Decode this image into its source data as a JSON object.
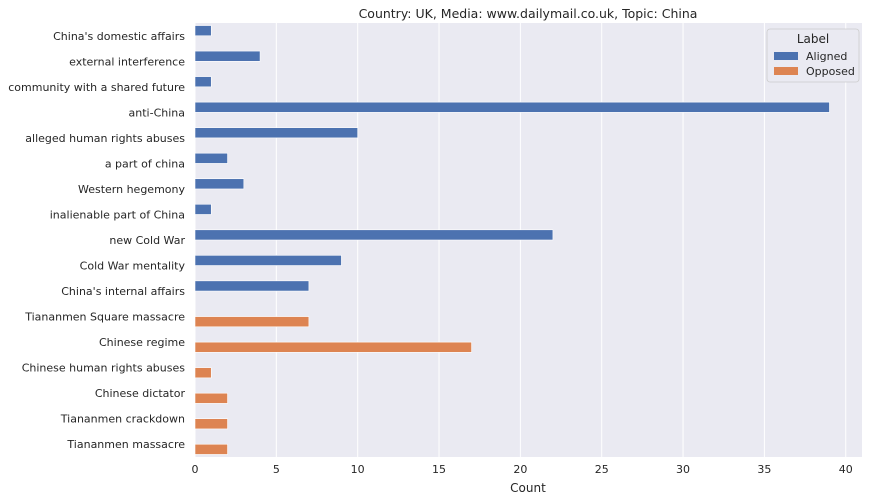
{
  "chart_data": {
    "type": "bar",
    "orientation": "horizontal",
    "title": "Country: UK, Media: www.dailymail.co.uk, Topic: China",
    "xlabel": "Count",
    "ylabel": "",
    "xlim": [
      0,
      41
    ],
    "xticks": [
      0,
      5,
      10,
      15,
      20,
      25,
      30,
      35,
      40
    ],
    "grid": true,
    "legend": {
      "title": "Label",
      "position": "top-right"
    },
    "categories": [
      "China's domestic affairs",
      "external interference",
      "community with a shared future",
      "anti-China",
      "alleged human rights abuses",
      "a part of china",
      "Western hegemony",
      "inalienable part of China",
      "new Cold War",
      "Cold War mentality",
      "China's internal affairs",
      "Tiananmen Square massacre",
      "Chinese regime",
      "Chinese human rights abuses",
      "Chinese dictator",
      "Tiananmen crackdown",
      "Tiananmen massacre"
    ],
    "series": [
      {
        "name": "Aligned",
        "color": "#4c72b0",
        "values": [
          1,
          4,
          1,
          39,
          10,
          2,
          3,
          1,
          22,
          9,
          7,
          null,
          null,
          null,
          null,
          null,
          null
        ]
      },
      {
        "name": "Opposed",
        "color": "#dd8452",
        "values": [
          null,
          null,
          null,
          null,
          null,
          null,
          null,
          null,
          null,
          null,
          null,
          7,
          17,
          1,
          2,
          2,
          2
        ]
      }
    ]
  }
}
